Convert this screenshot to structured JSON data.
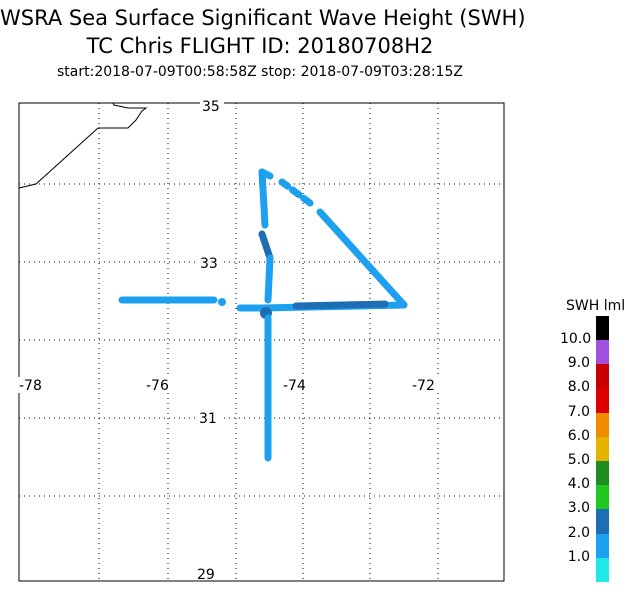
{
  "title": {
    "line1": "WSRA Sea Surface Significant Wave Height (SWH)",
    "line2": "TC Chris FLIGHT ID: 20180708H2",
    "line3": "start:2018-07-09T00:58:58Z stop: 2018-07-09T03:28:15Z"
  },
  "map": {
    "lon_labels": [
      "-78",
      "-76",
      "-74",
      "-72"
    ],
    "lat_labels": [
      "35",
      "33",
      "31",
      "29"
    ],
    "grid": "dotted"
  },
  "legend": {
    "title": "SWH lml",
    "levels": [
      {
        "label": "",
        "color": "#20e8e8"
      },
      {
        "label": "1.0",
        "color": "#1ea0f0"
      },
      {
        "label": "2.0",
        "color": "#1e6eb4"
      },
      {
        "label": "3.0",
        "color": "#1ec81e"
      },
      {
        "label": "4.0",
        "color": "#1e8c1e"
      },
      {
        "label": "5.0",
        "color": "#e6b400"
      },
      {
        "label": "6.0",
        "color": "#f08c00"
      },
      {
        "label": "7.0",
        "color": "#dc0000"
      },
      {
        "label": "8.0",
        "color": "#c80000"
      },
      {
        "label": "9.0",
        "color": "#a050dc"
      },
      {
        "label": "10.0",
        "color": "#000000"
      }
    ]
  }
}
